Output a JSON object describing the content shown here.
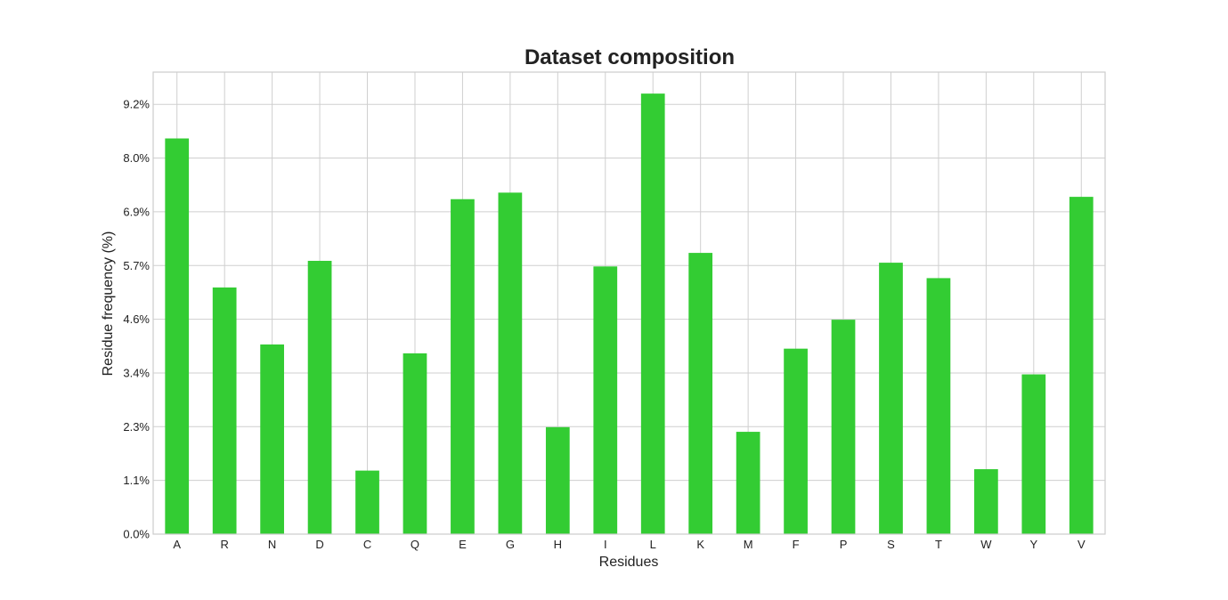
{
  "chart_data": {
    "type": "bar",
    "title": "Dataset composition",
    "xlabel": "Residues",
    "ylabel": "Residue frequency (%)",
    "categories": [
      "A",
      "R",
      "N",
      "D",
      "C",
      "Q",
      "E",
      "G",
      "H",
      "I",
      "L",
      "K",
      "M",
      "F",
      "P",
      "S",
      "T",
      "W",
      "Y",
      "V"
    ],
    "values": [
      8.47,
      5.28,
      4.06,
      5.85,
      1.36,
      3.87,
      7.17,
      7.31,
      2.29,
      5.73,
      9.43,
      6.02,
      2.19,
      3.97,
      4.59,
      5.81,
      5.48,
      1.39,
      3.42,
      7.22
    ],
    "yticks": [
      0.0,
      1.15,
      2.3,
      3.45,
      4.6,
      5.75,
      6.9,
      8.05,
      9.2
    ],
    "ytick_labels": [
      "0.0%",
      "1.1%",
      "2.3%",
      "3.4%",
      "4.6%",
      "5.7%",
      "6.9%",
      "8.0%",
      "9.2%"
    ],
    "ylim": [
      0,
      9.89
    ],
    "grid": true,
    "legend": "none",
    "bar_color": "#33cc33"
  }
}
